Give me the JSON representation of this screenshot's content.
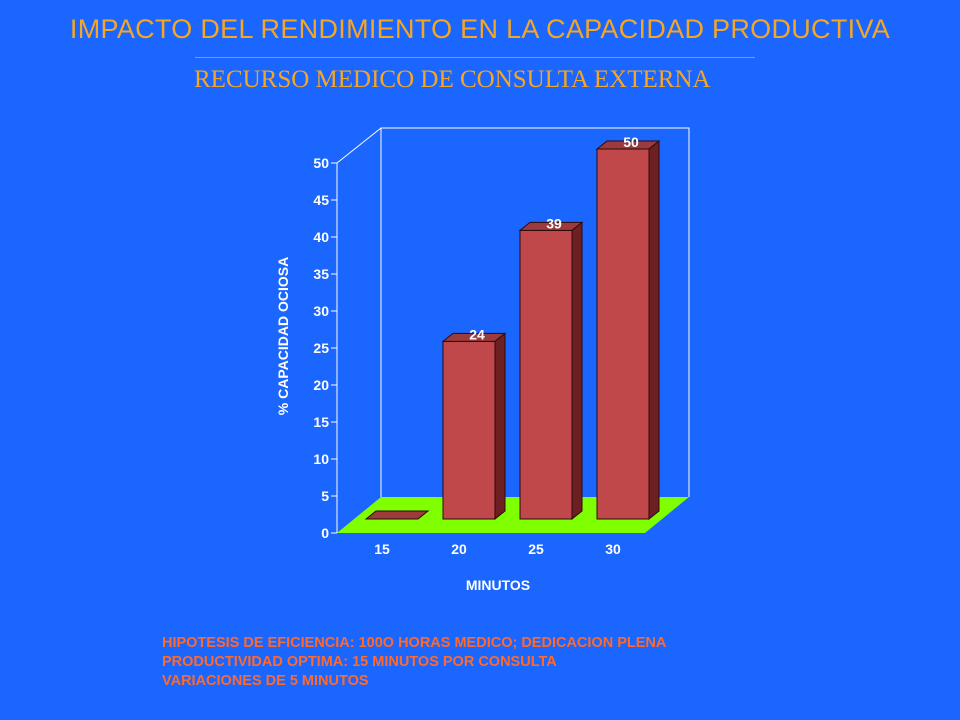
{
  "header": {
    "title": "IMPACTO DEL RENDIMIENTO EN LA CAPACIDAD PRODUCTIVA",
    "subtitle": "RECURSO MEDICO DE CONSULTA EXTERNA"
  },
  "chart_data": {
    "type": "bar",
    "categories": [
      "15",
      "20",
      "25",
      "30"
    ],
    "values": [
      0,
      24,
      39,
      50
    ],
    "data_labels": [
      "",
      "24",
      "39",
      "50"
    ],
    "xlabel": "MINUTOS",
    "ylabel": "% CAPACIDAD OCIOSA",
    "ylim": [
      0,
      50
    ],
    "yticks": [
      "0",
      "5",
      "10",
      "15",
      "20",
      "25",
      "30",
      "35",
      "40",
      "45",
      "50"
    ],
    "grid": false,
    "style": "3d",
    "colors": {
      "bar_front": "#c0474a",
      "bar_top": "#9c3a3c",
      "bar_side": "#6e1f22",
      "floor": "#7fff00",
      "axis": "#ffffff",
      "tick_text": "#ffffff",
      "data_label": "#ffffff"
    }
  },
  "notes": [
    "HIPOTESIS DE EFICIENCIA: 100O HORAS MEDICO; DEDICACION PLENA",
    "PRODUCTIVIDAD OPTIMA: 15 MINUTOS POR CONSULTA",
    "VARIACIONES DE 5 MINUTOS"
  ]
}
